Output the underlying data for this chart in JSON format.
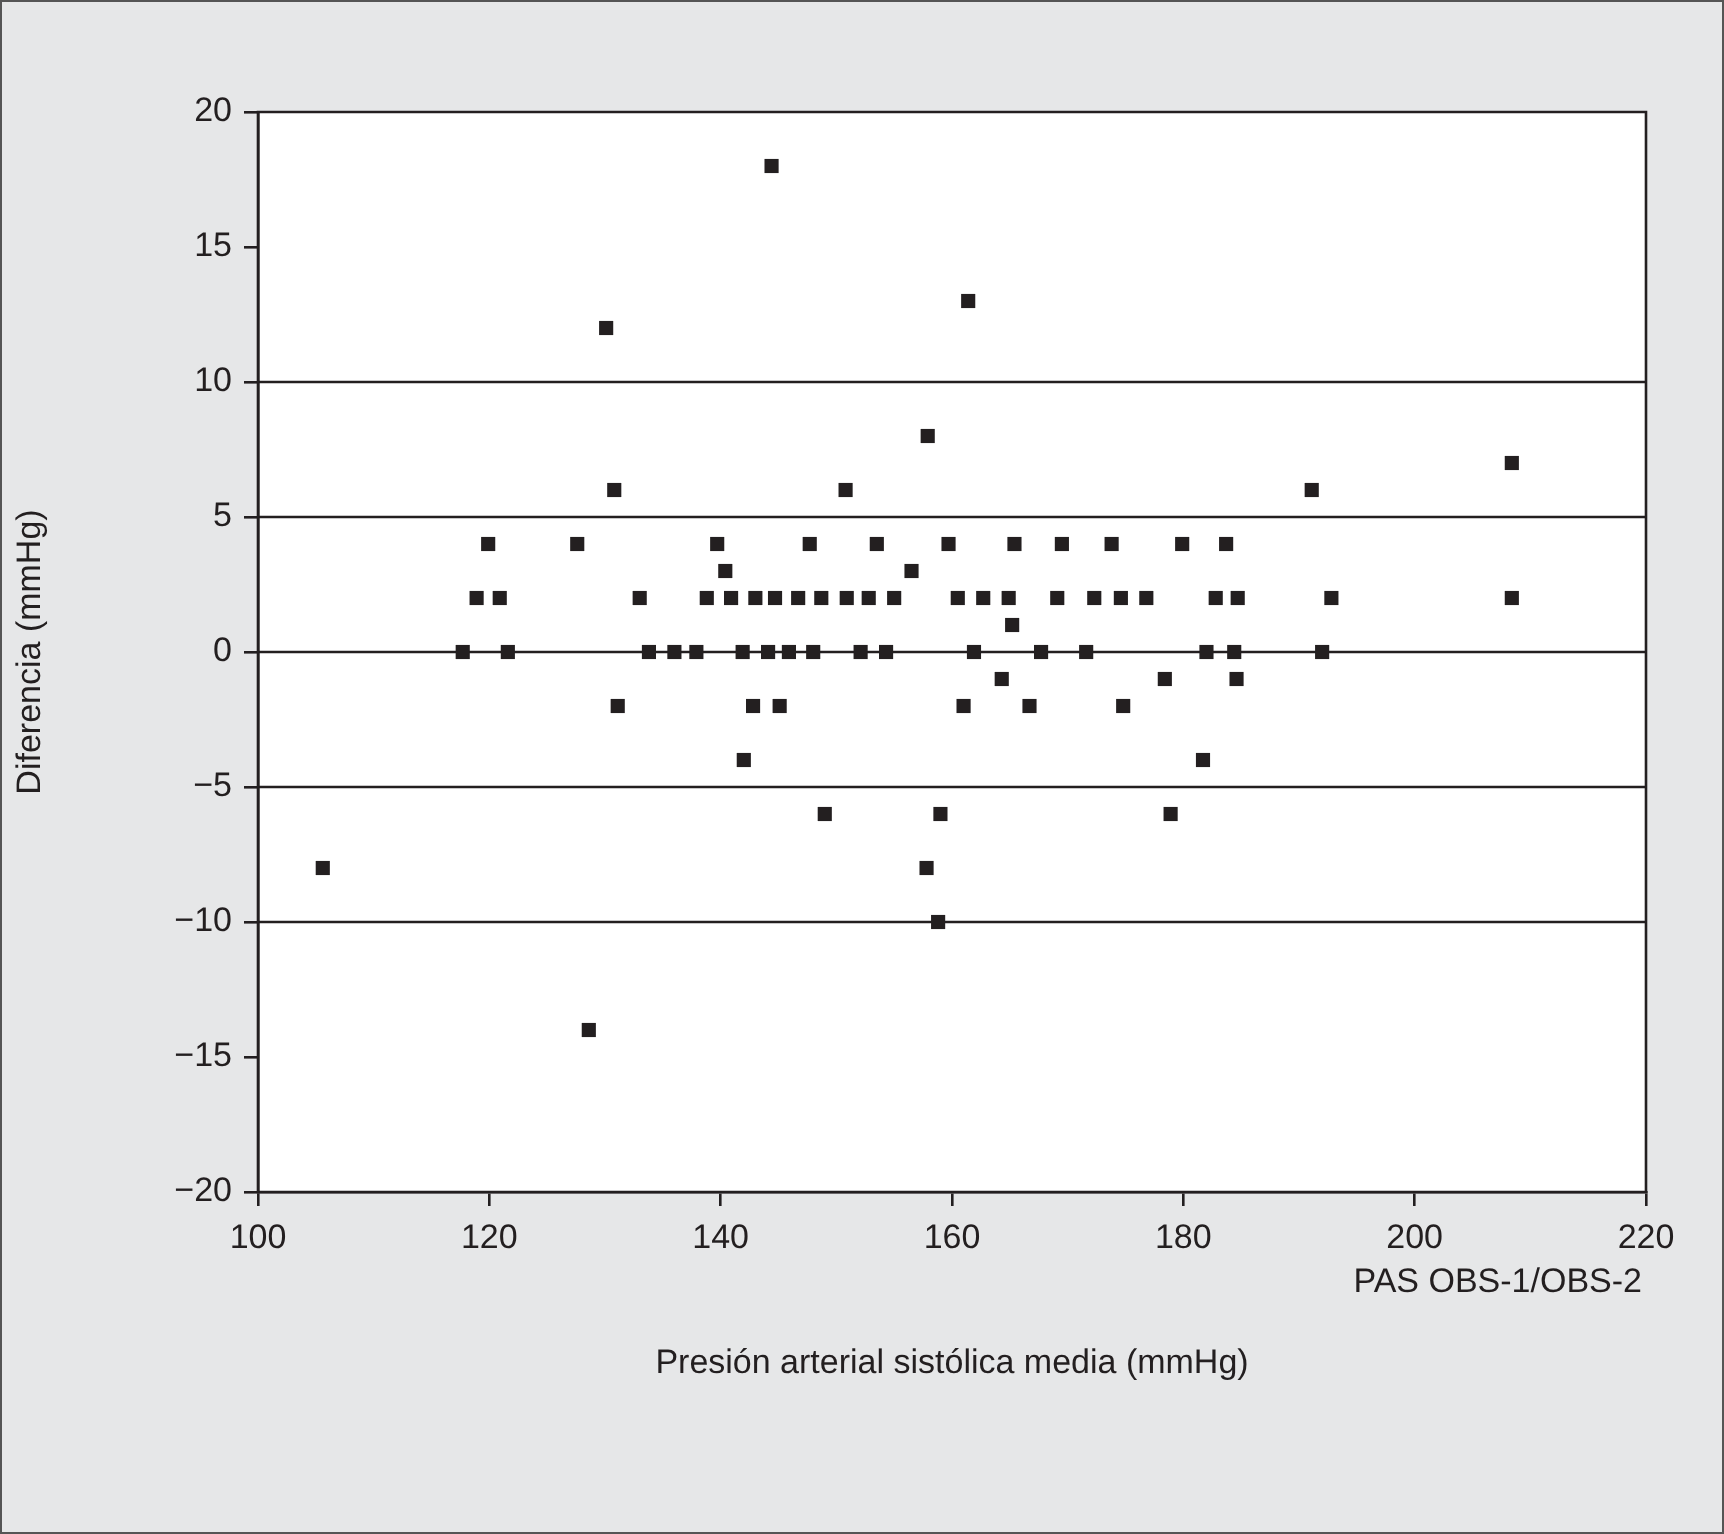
{
  "chart_data": {
    "type": "scatter",
    "xlabel": "Presión arterial sistólica media (mmHg)",
    "ylabel": "Diferencia (mmHg)",
    "annotations": [
      "PAS OBS-1/OBS-2"
    ],
    "xlim": [
      100,
      220
    ],
    "xticks": [
      100,
      120,
      140,
      160,
      180,
      200,
      220
    ],
    "ylim": [
      -20,
      20
    ],
    "yticks": [
      {
        "value": -20,
        "label": "−20"
      },
      {
        "value": -15,
        "label": "−15"
      },
      {
        "value": -10,
        "label": "−10"
      },
      {
        "value": -5,
        "label": "−5"
      },
      0,
      5,
      10,
      15,
      20
    ],
    "grid": false,
    "marker": "square",
    "ref_lines": [
      {
        "axis": "y",
        "value": 10,
        "color": "#231f20"
      },
      {
        "axis": "y",
        "value": 5,
        "color": "#231f20"
      },
      {
        "axis": "y",
        "value": 0,
        "color": "#231f20"
      },
      {
        "axis": "y",
        "value": -5,
        "color": "#231f20"
      },
      {
        "axis": "y",
        "value": -10,
        "color": "#231f20"
      }
    ],
    "series": [
      {
        "color": "#231f20",
        "x": [
          105.6,
          117.7,
          118.9,
          119.9,
          120.9,
          121.6,
          127.6,
          128.6,
          130.1,
          130.8,
          131.1,
          133.0,
          133.8,
          136.0,
          137.9,
          138.8,
          139.7,
          140.4,
          140.9,
          141.9,
          142.0,
          142.8,
          143.0,
          144.1,
          144.4,
          144.7,
          145.1,
          145.9,
          146.7,
          147.7,
          148.0,
          148.7,
          149.0,
          150.8,
          150.9,
          152.1,
          152.8,
          153.5,
          154.3,
          155.0,
          156.5,
          157.8,
          157.9,
          158.8,
          159.0,
          159.7,
          160.5,
          161.0,
          161.4,
          161.9,
          162.7,
          164.3,
          164.9,
          165.2,
          165.4,
          166.7,
          167.7,
          169.1,
          169.5,
          171.6,
          172.3,
          173.8,
          174.6,
          174.8,
          176.8,
          178.4,
          178.9,
          179.9,
          181.7,
          182.0,
          182.8,
          183.7,
          184.4,
          184.6,
          184.7,
          191.1,
          192.0,
          192.8,
          208.4,
          208.4
        ],
        "values": [
          -8,
          0,
          2,
          4,
          2,
          0,
          4,
          -14,
          12,
          6,
          -2,
          2,
          0,
          0,
          0,
          2,
          4,
          3,
          2,
          0,
          -4,
          -2,
          2,
          0,
          18,
          2,
          -2,
          0,
          2,
          4,
          0,
          2,
          -6,
          6,
          2,
          0,
          2,
          4,
          0,
          2,
          3,
          -8,
          8,
          -10,
          -6,
          4,
          2,
          -2,
          13,
          0,
          2,
          -1,
          2,
          1,
          4,
          -2,
          0,
          2,
          4,
          0,
          2,
          4,
          2,
          -2,
          2,
          -1,
          -6,
          4,
          -4,
          0,
          2,
          4,
          0,
          -1,
          2,
          6,
          0,
          2,
          7,
          2
        ]
      }
    ]
  }
}
